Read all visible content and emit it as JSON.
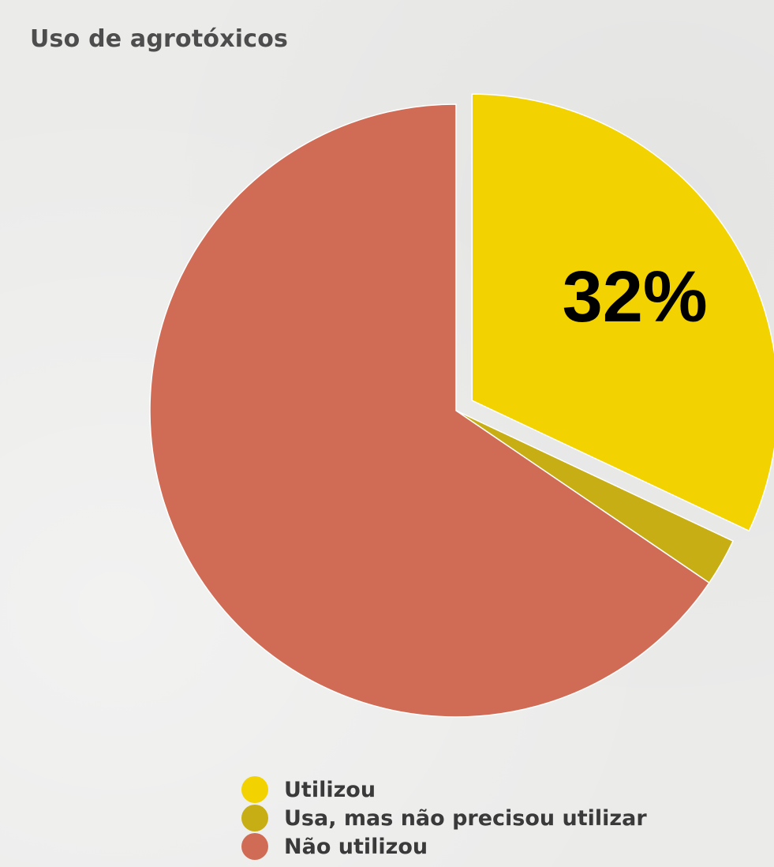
{
  "title": "Uso de agrotóxicos",
  "chart_data": {
    "type": "pie",
    "title": "Uso de agrotóxicos",
    "slices": [
      {
        "label": "Utilizou",
        "value": 32,
        "color": "#f2d200",
        "exploded": true,
        "data_label": "32%"
      },
      {
        "label": "Usa, mas não precisou utilizar",
        "value": 2.5,
        "color": "#c7ae15"
      },
      {
        "label": "Não utilizou",
        "value": 65.5,
        "color": "#d06c55"
      }
    ],
    "legend_position": "bottom"
  }
}
